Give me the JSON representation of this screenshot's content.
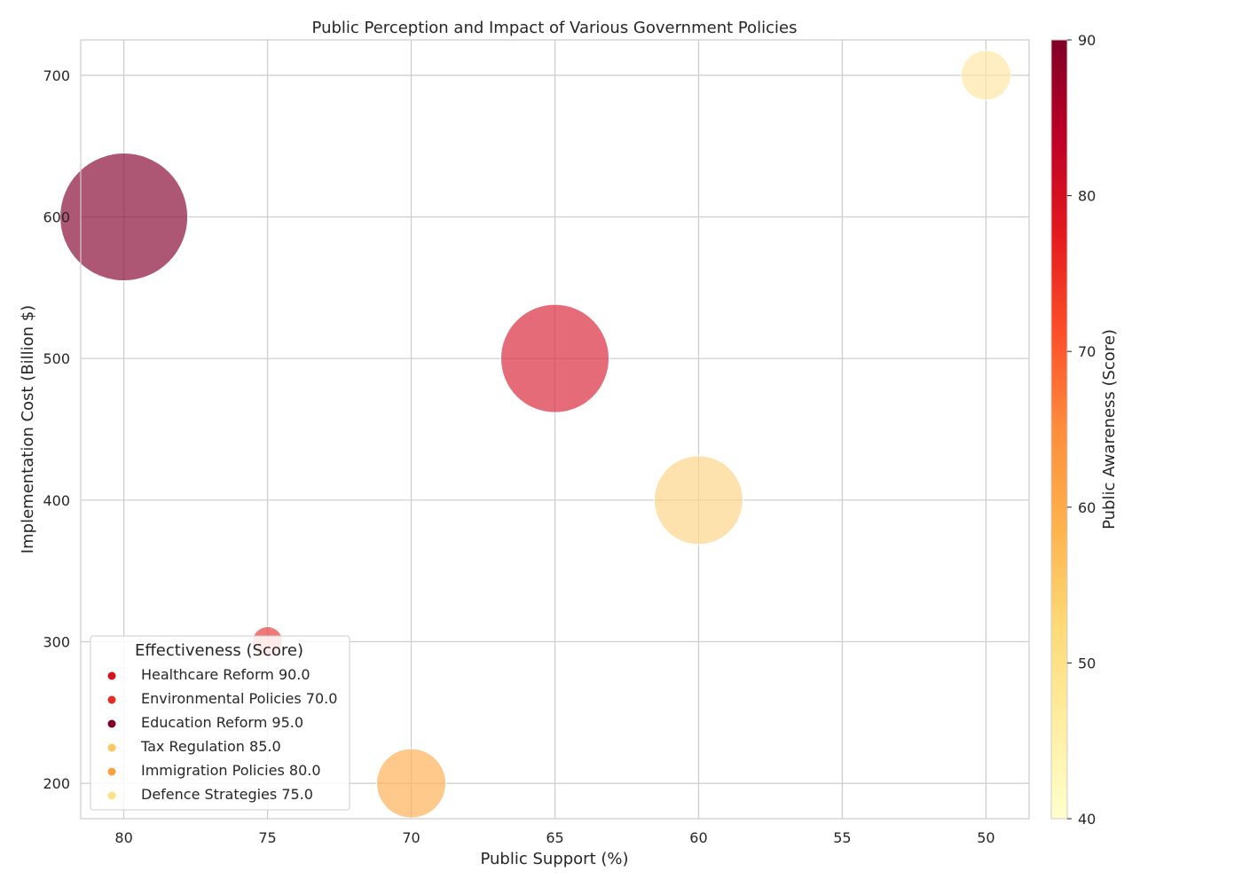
{
  "chart_data": {
    "type": "scatter",
    "title": "Public Perception and Impact of Various Government Policies",
    "xlabel": "Public Support (%)",
    "ylabel": "Implementation Cost (Billion $)",
    "xlim": [
      81.5,
      48.5
    ],
    "ylim": [
      175,
      725
    ],
    "x_ticks": [
      80,
      75,
      70,
      65,
      60,
      55,
      50
    ],
    "y_ticks": [
      200,
      300,
      400,
      500,
      600,
      700
    ],
    "x_reversed": true,
    "grid": true,
    "legend": {
      "title": "Effectiveness (Score)",
      "placement": "lower-left"
    },
    "colorbar": {
      "label": "Public Awareness (Score)",
      "min": 40,
      "max": 90,
      "ticks": [
        40,
        50,
        60,
        70,
        80,
        90
      ],
      "colormap": "YlOrRd"
    },
    "series": [
      {
        "name": "Healthcare Reform",
        "effectiveness_label": "90.0",
        "public_support": 65,
        "cost": 500,
        "color": "#dc2c40",
        "legend_color": "#d4151f"
      },
      {
        "name": "Environmental Policies",
        "effectiveness_label": "70.0",
        "public_support": 75,
        "cost": 300,
        "color": "#e8433f",
        "legend_color": "#e62d24"
      },
      {
        "name": "Education Reform",
        "effectiveness_label": "95.0",
        "public_support": 80,
        "cost": 600,
        "color": "#8b0f3a",
        "legend_color": "#800026"
      },
      {
        "name": "Tax Regulation",
        "effectiveness_label": "85.0",
        "public_support": 60,
        "cost": 400,
        "color": "#fed68a",
        "legend_color": "#fec763"
      },
      {
        "name": "Immigration Policies",
        "effectiveness_label": "80.0",
        "public_support": 70,
        "cost": 200,
        "color": "#feb25a",
        "legend_color": "#fda140"
      },
      {
        "name": "Defence Strategies",
        "effectiveness_label": "75.0",
        "public_support": 50,
        "cost": 700,
        "color": "#fee7a6",
        "legend_color": "#fee085"
      }
    ]
  }
}
